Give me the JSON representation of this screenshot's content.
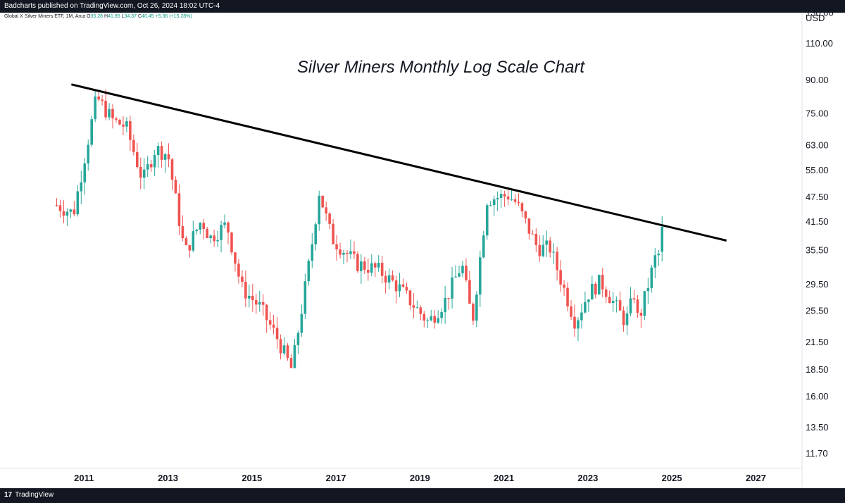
{
  "header": {
    "published_text": "Badcharts published on TradingView.com, Oct 26, 2024 18:02 UTC-4"
  },
  "legend": {
    "symbol": "Global X Silver Miners ETF, 1M, Arca",
    "open_label": "O",
    "open": "35.28",
    "high_label": "H",
    "high": "41.85",
    "low_label": "L",
    "low": "34.37",
    "close_label": "C",
    "close": "40.45",
    "change": "+5.36 (+15.28%)"
  },
  "footer": {
    "logo_text": "TradingView",
    "logo_icon": "tradingview-logo-icon"
  },
  "colors": {
    "up": "#26a69a",
    "down": "#ef5350",
    "trendline": "#000000",
    "change_text": "#089981",
    "bars": "#131722"
  },
  "chart_data": {
    "type": "candlestick",
    "title": "Silver Miners Monthly Log Scale Chart",
    "currency_label": "USD",
    "y_scale": "log",
    "y_tick_labels": [
      "130.00",
      "110.00",
      "90.00",
      "75.00",
      "63.00",
      "55.00",
      "47.50",
      "41.50",
      "35.50",
      "29.50",
      "25.50",
      "21.50",
      "18.50",
      "16.00",
      "13.50",
      "11.70"
    ],
    "y_tick_values": [
      130,
      110,
      90,
      75,
      63,
      55,
      47.5,
      41.5,
      35.5,
      29.5,
      25.5,
      21.5,
      18.5,
      16,
      13.5,
      11.7
    ],
    "x_tick_labels": [
      "2011",
      "2013",
      "2015",
      "2017",
      "2019",
      "2021",
      "2023",
      "2025",
      "2027"
    ],
    "x_tick_years": [
      2011,
      2013,
      2015,
      2017,
      2019,
      2021,
      2023,
      2025,
      2027
    ],
    "x_range_years": [
      2009.0,
      2028.1
    ],
    "y_range": [
      10.8,
      130.2
    ],
    "grid": false,
    "trendline": {
      "from": [
        "2010.7",
        88.0
      ],
      "to": [
        "2026.3",
        37.5
      ]
    },
    "monthly_closes": [
      [
        2010.35,
        45.5
      ],
      [
        2010.75,
        43.5
      ],
      [
        2011.3,
        82.0
      ],
      [
        2011.7,
        72.0
      ],
      [
        2012.0,
        70.0
      ],
      [
        2012.4,
        52.0
      ],
      [
        2012.7,
        62.0
      ],
      [
        2013.0,
        60.0
      ],
      [
        2013.4,
        35.0
      ],
      [
        2013.8,
        42.0
      ],
      [
        2014.0,
        38.0
      ],
      [
        2014.4,
        41.0
      ],
      [
        2014.75,
        29.0
      ],
      [
        2015.2,
        26.0
      ],
      [
        2015.6,
        22.0
      ],
      [
        2015.95,
        18.5
      ],
      [
        2016.4,
        35.0
      ],
      [
        2016.6,
        49.0
      ],
      [
        2016.9,
        38.0
      ],
      [
        2017.5,
        33.0
      ],
      [
        2018.0,
        32.0
      ],
      [
        2018.5,
        29.0
      ],
      [
        2018.9,
        26.0
      ],
      [
        2019.2,
        24.0
      ],
      [
        2019.6,
        27.0
      ],
      [
        2020.0,
        33.0
      ],
      [
        2020.25,
        24.0
      ],
      [
        2020.6,
        47.0
      ],
      [
        2021.1,
        48.0
      ],
      [
        2021.3,
        46.0
      ],
      [
        2021.8,
        36.0
      ],
      [
        2022.1,
        36.0
      ],
      [
        2022.7,
        24.0
      ],
      [
        2023.0,
        28.0
      ],
      [
        2023.3,
        30.0
      ],
      [
        2023.9,
        24.0
      ],
      [
        2024.1,
        28.0
      ],
      [
        2024.2,
        24.0
      ],
      [
        2024.6,
        34.0
      ],
      [
        2024.75,
        35.28
      ],
      [
        2024.83,
        40.45
      ]
    ]
  }
}
